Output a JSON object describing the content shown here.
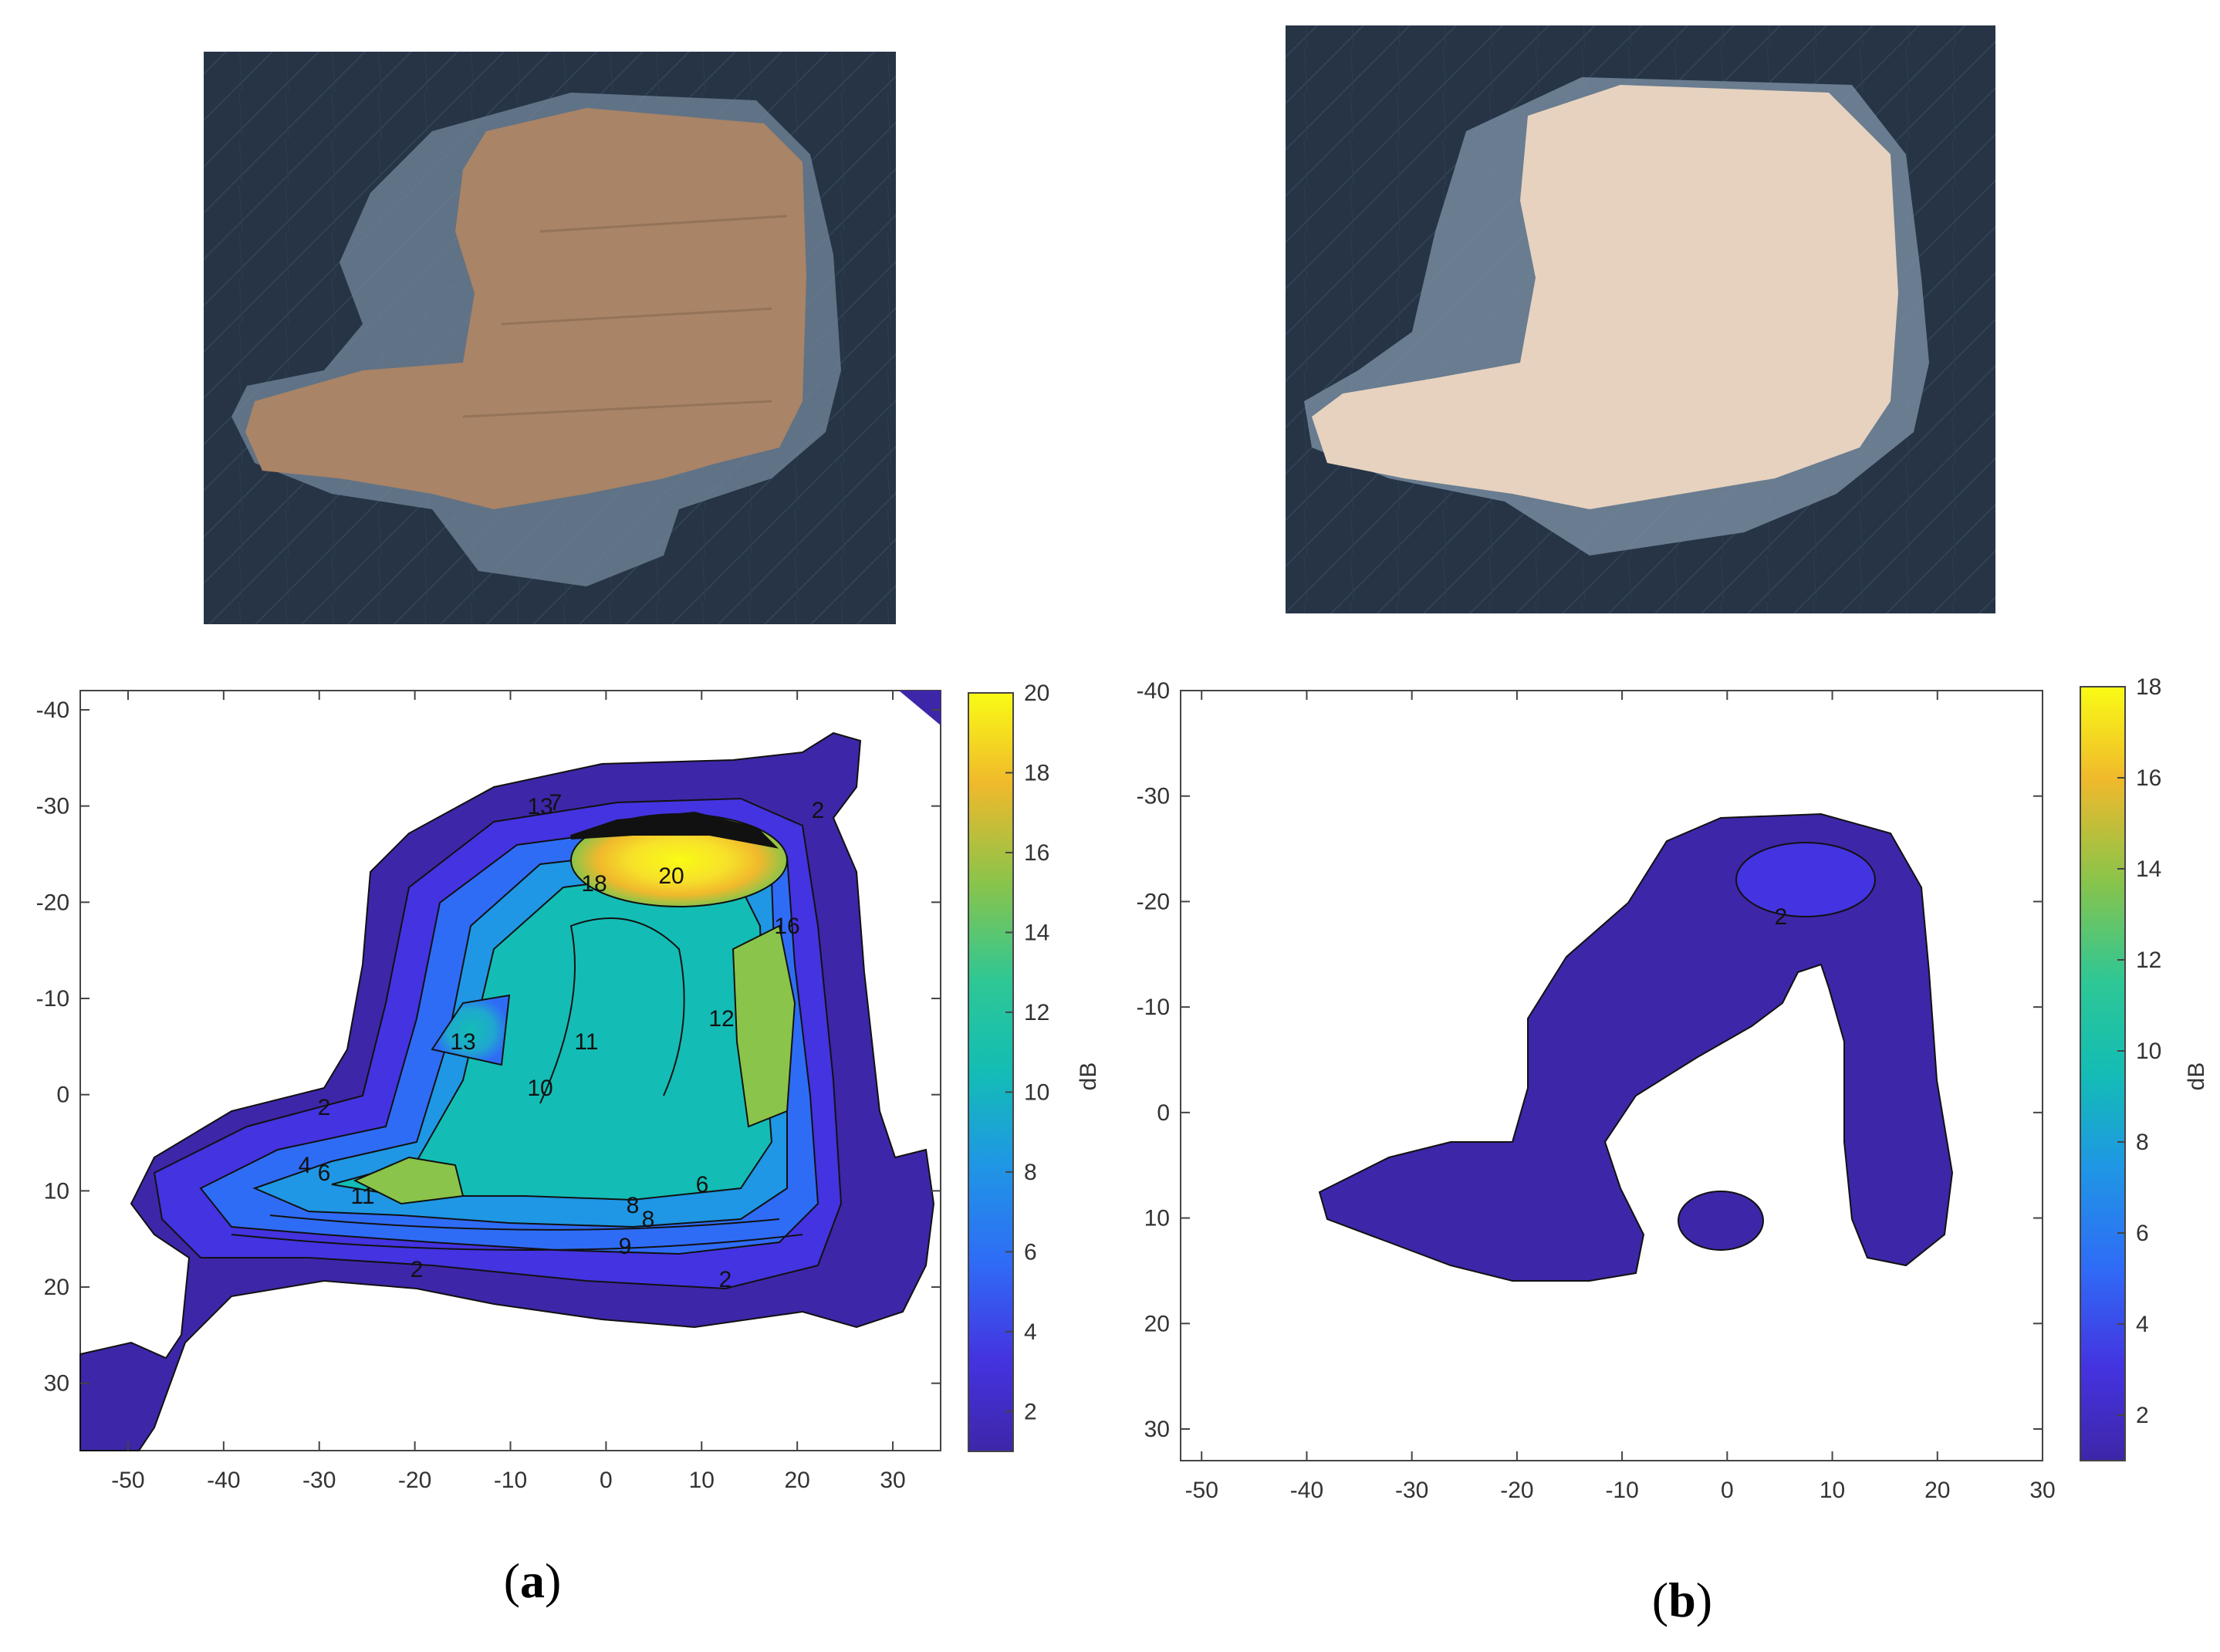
{
  "panels": [
    {
      "caption_open": "(",
      "caption_letter": "a",
      "caption_close": ")",
      "photo": {
        "description_icon": "adhesive-fracture-surface-photo",
        "fill": "#a98466"
      },
      "chart_data": {
        "type": "contour",
        "xticks": [
          "-50",
          "-40",
          "-30",
          "-20",
          "-10",
          "0",
          "10",
          "20",
          "30"
        ],
        "yticks": [
          "-40",
          "-30",
          "-20",
          "-10",
          "0",
          "10",
          "20",
          "30"
        ],
        "xlim": [
          -55,
          35
        ],
        "ylim": [
          -42,
          37
        ],
        "y_reversed": true,
        "colorbar": {
          "label": "dB",
          "ticks": [
            "2",
            "4",
            "6",
            "8",
            "10",
            "12",
            "14",
            "16",
            "18",
            "20"
          ],
          "range": [
            1,
            20
          ],
          "colormap": "parula"
        },
        "contour_labels": [
          "2",
          "2",
          "2",
          "2",
          "4",
          "6",
          "6",
          "7",
          "8",
          "8",
          "9",
          "10",
          "11",
          "11",
          "12",
          "13",
          "13",
          "16",
          "18",
          "20"
        ]
      }
    },
    {
      "caption_open": "(",
      "caption_letter": "b",
      "caption_close": ")",
      "photo": {
        "description_icon": "adhesive-fracture-surface-photo",
        "fill": "#e6d2bf"
      },
      "chart_data": {
        "type": "contour",
        "xticks": [
          "-50",
          "-40",
          "-30",
          "-20",
          "-10",
          "0",
          "10",
          "20",
          "30"
        ],
        "yticks": [
          "-40",
          "-30",
          "-20",
          "-10",
          "0",
          "10",
          "20",
          "30"
        ],
        "xlim": [
          -52,
          30
        ],
        "ylim": [
          -40,
          33
        ],
        "y_reversed": true,
        "colorbar": {
          "label": "dB",
          "ticks": [
            "2",
            "4",
            "6",
            "8",
            "10",
            "12",
            "14",
            "16",
            "18"
          ],
          "range": [
            1,
            18
          ],
          "colormap": "parula"
        },
        "contour_labels": [
          "2"
        ]
      }
    }
  ],
  "colors": {
    "parula_low": "#3e26a8",
    "parula_mid": "#13bdb5",
    "parula_high": "#f9fb15",
    "background": "#1f2c3a"
  }
}
